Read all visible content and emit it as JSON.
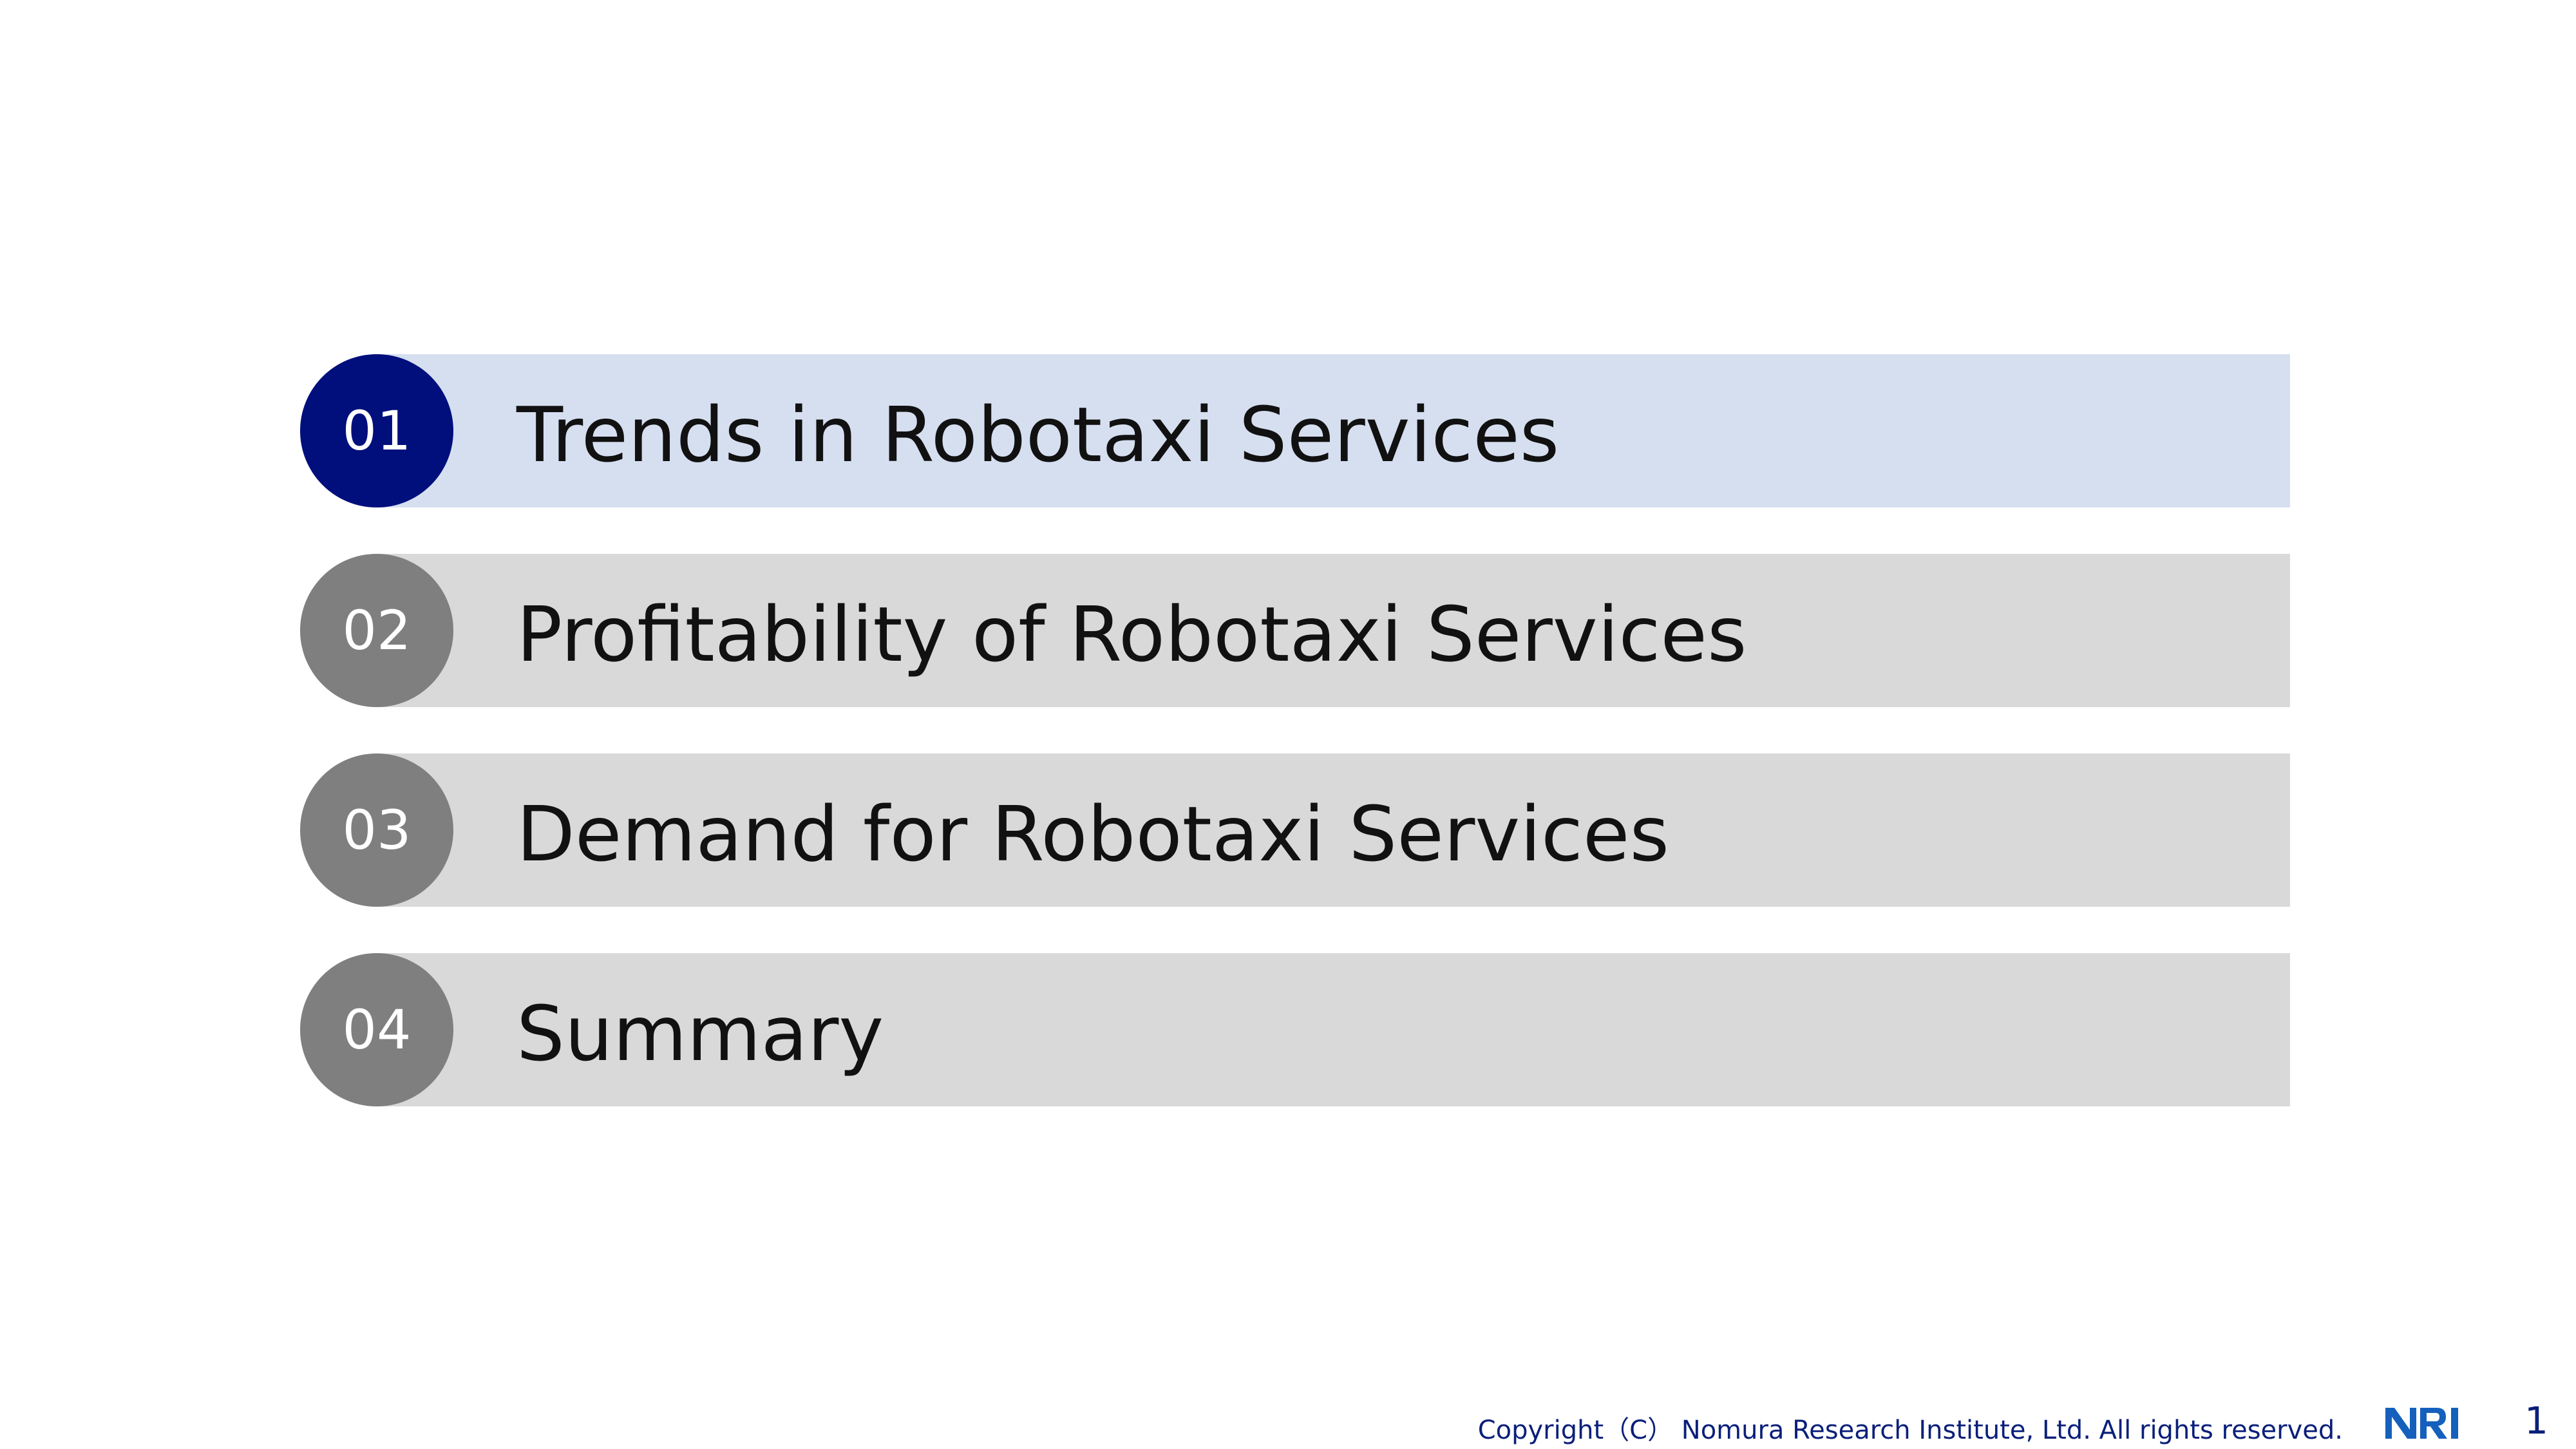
{
  "agenda": {
    "items": [
      {
        "number": "01",
        "title": "Trends in Robotaxi Services",
        "active": true
      },
      {
        "number": "02",
        "title": "Profitability of Robotaxi Services",
        "active": false
      },
      {
        "number": "03",
        "title": "Demand for Robotaxi Services",
        "active": false
      },
      {
        "number": "04",
        "title": "Summary",
        "active": false
      }
    ]
  },
  "footer": {
    "copyright": "Copyright（C） Nomura Research Institute, Ltd. All rights reserved.",
    "logo_text": "NRI",
    "page_number": "1"
  },
  "colors": {
    "active_circle": "#000f7c",
    "active_bar": "#d6dff0",
    "inactive_circle": "#7f7f7f",
    "inactive_bar": "#d9d9d9",
    "footer_text": "#0a1f7a",
    "logo": "#1560bd"
  }
}
